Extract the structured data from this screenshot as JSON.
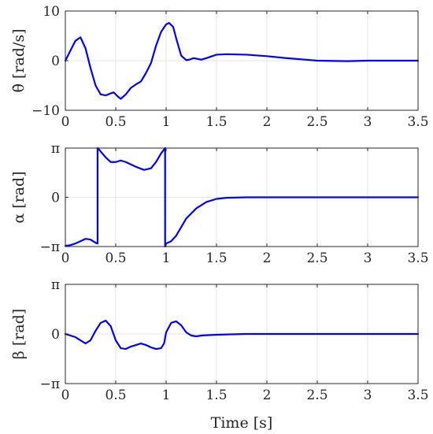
{
  "figure": {
    "xlabel": "Time [s]"
  },
  "chart_data": [
    {
      "type": "line",
      "ylabel": "θ̇ [rad/s]",
      "xlim": [
        0,
        3.5
      ],
      "ylim": [
        -10,
        10
      ],
      "grid": true,
      "x_ticks": [
        0,
        0.5,
        1,
        1.5,
        2,
        2.5,
        3,
        3.5
      ],
      "x_tick_labels": [
        "0",
        "0.5",
        "1",
        "1.5",
        "2",
        "2.5",
        "3",
        "3.5"
      ],
      "y_ticks": [
        -10,
        0,
        10
      ],
      "y_tick_labels": [
        "−10",
        "0",
        "10"
      ],
      "series": [
        {
          "color": "#0000ff",
          "x": [
            0,
            0.05,
            0.1,
            0.15,
            0.2,
            0.25,
            0.3,
            0.35,
            0.4,
            0.45,
            0.48,
            0.52,
            0.55,
            0.6,
            0.65,
            0.7,
            0.75,
            0.8,
            0.85,
            0.9,
            0.95,
            1.0,
            1.03,
            1.07,
            1.1,
            1.15,
            1.2,
            1.23,
            1.27,
            1.3,
            1.35,
            1.4,
            1.5,
            1.6,
            1.8,
            2.0,
            2.2,
            2.5,
            2.8,
            3.0,
            3.2,
            3.5
          ],
          "y": [
            0,
            2,
            4,
            4.7,
            2.5,
            -1.5,
            -5,
            -6.8,
            -7,
            -6.6,
            -6.4,
            -7.2,
            -7.7,
            -6.8,
            -5.5,
            -4.8,
            -4.2,
            -2.5,
            -0.5,
            3,
            5.8,
            7.3,
            7.6,
            6.8,
            4.5,
            1,
            0.1,
            0.2,
            0.5,
            0.4,
            0.2,
            0.5,
            1.2,
            1.3,
            1.2,
            0.9,
            0.5,
            0,
            -0.1,
            0,
            0,
            0
          ]
        }
      ]
    },
    {
      "type": "line",
      "ylabel": "α [rad]",
      "xlim": [
        0,
        3.5
      ],
      "ylim": [
        -3.1416,
        3.1416
      ],
      "grid": true,
      "x_ticks": [
        0,
        0.5,
        1,
        1.5,
        2,
        2.5,
        3,
        3.5
      ],
      "x_tick_labels": [
        "0",
        "0.5",
        "1",
        "1.5",
        "2",
        "2.5",
        "3",
        "3.5"
      ],
      "y_ticks": [
        -3.1416,
        0,
        3.1416
      ],
      "y_tick_labels": [
        "−π",
        "0",
        "π"
      ],
      "series": [
        {
          "color": "#0000ff",
          "x": [
            0,
            0.05,
            0.1,
            0.15,
            0.2,
            0.25,
            0.3,
            0.32,
            0.32,
            0.33,
            0.4,
            0.45,
            0.5,
            0.55,
            0.6,
            0.7,
            0.78,
            0.85,
            0.9,
            0.95,
            0.99,
            0.99,
            1.0,
            1.05,
            1.1,
            1.15,
            1.2,
            1.3,
            1.4,
            1.5,
            1.6,
            1.8,
            2.0,
            2.5,
            3.0,
            3.5
          ],
          "y": [
            -3.1,
            -3.05,
            -2.95,
            -2.8,
            -2.65,
            -2.7,
            -2.9,
            -2.95,
            3.1416,
            3.08,
            2.55,
            2.25,
            2.25,
            2.35,
            2.25,
            1.95,
            1.75,
            1.85,
            2.25,
            2.8,
            3.1416,
            -3.1416,
            -2.95,
            -2.8,
            -2.45,
            -1.9,
            -1.35,
            -0.7,
            -0.3,
            -0.1,
            -0.03,
            0,
            0,
            0,
            0,
            0
          ]
        }
      ]
    },
    {
      "type": "line",
      "ylabel": "β [rad]",
      "xlim": [
        0,
        3.5
      ],
      "ylim": [
        -3.1416,
        3.1416
      ],
      "grid": true,
      "x_ticks": [
        0,
        0.5,
        1,
        1.5,
        2,
        2.5,
        3,
        3.5
      ],
      "x_tick_labels": [
        "0",
        "0.5",
        "1",
        "1.5",
        "2",
        "2.5",
        "3",
        "3.5"
      ],
      "y_ticks": [
        -3.1416,
        0,
        3.1416
      ],
      "y_tick_labels": [
        "−π",
        "0",
        "π"
      ],
      "series": [
        {
          "color": "#0000ff",
          "x": [
            0,
            0.1,
            0.2,
            0.25,
            0.3,
            0.35,
            0.4,
            0.45,
            0.5,
            0.55,
            0.6,
            0.65,
            0.7,
            0.75,
            0.8,
            0.85,
            0.9,
            0.95,
            0.98,
            1.0,
            1.05,
            1.1,
            1.15,
            1.2,
            1.25,
            1.3,
            1.35,
            1.4,
            1.5,
            1.6,
            1.8,
            2.0,
            2.5,
            3.0,
            3.5
          ],
          "y": [
            0,
            -0.2,
            -0.6,
            -0.4,
            0.2,
            0.7,
            0.85,
            0.5,
            -0.4,
            -0.9,
            -0.95,
            -0.8,
            -0.7,
            -0.6,
            -0.7,
            -0.85,
            -0.95,
            -0.9,
            -0.6,
            0.1,
            0.7,
            0.8,
            0.55,
            0.1,
            -0.1,
            -0.15,
            -0.1,
            -0.08,
            -0.05,
            -0.03,
            0,
            0,
            0,
            0,
            0
          ]
        }
      ]
    }
  ]
}
